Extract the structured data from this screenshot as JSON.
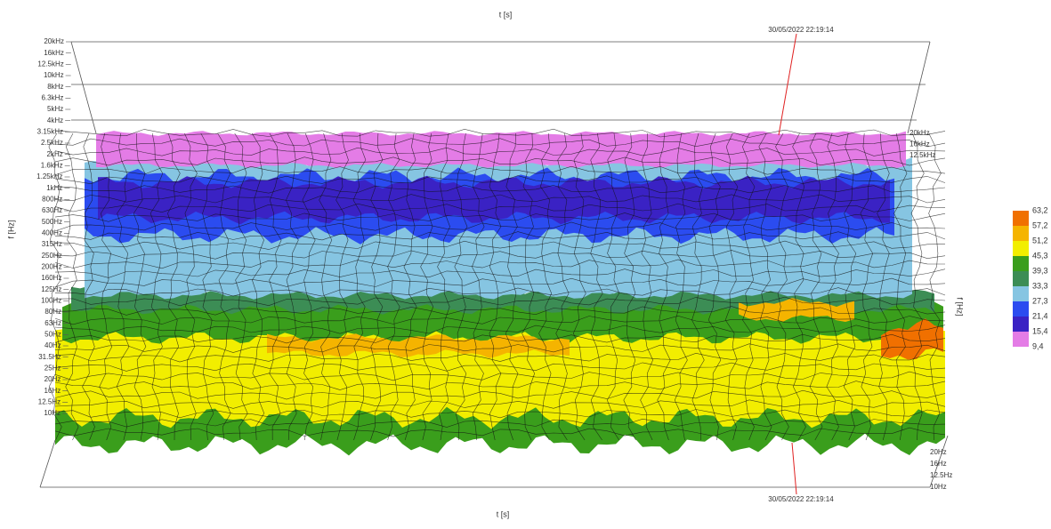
{
  "chart_data": {
    "type": "surface3d",
    "x_label": "t [s]",
    "y_label": "f [Hz]",
    "marker_label": "30/05/2022 22:19:14",
    "y_categories": [
      "20kHz",
      "16kHz",
      "12.5kHz",
      "10kHz",
      "8kHz",
      "6.3kHz",
      "5kHz",
      "4kHz",
      "3.15kHz",
      "2.5kHz",
      "2kHz",
      "1.6kHz",
      "1.25kHz",
      "1kHz",
      "800Hz",
      "630Hz",
      "500Hz",
      "400Hz",
      "315Hz",
      "250Hz",
      "200Hz",
      "160Hz",
      "125Hz",
      "100Hz",
      "80Hz",
      "63Hz",
      "50Hz",
      "40Hz",
      "31.5Hz",
      "25Hz",
      "20Hz",
      "16Hz",
      "12.5Hz",
      "10Hz"
    ],
    "right_upper_labels": [
      "20kHz",
      "16kHz",
      "12.5kHz"
    ],
    "right_lower_labels": [
      "20Hz",
      "16Hz",
      "12.5Hz",
      "10Hz"
    ],
    "colorbar": {
      "levels": [
        {
          "value": 63.2,
          "label": "63,2"
        },
        {
          "value": 57.2,
          "label": "57,2"
        },
        {
          "value": 51.2,
          "label": "51,2"
        },
        {
          "value": 45.3,
          "label": "45,3"
        },
        {
          "value": 39.3,
          "label": "39,3"
        },
        {
          "value": 33.3,
          "label": "33,3"
        },
        {
          "value": 27.3,
          "label": "27,3"
        },
        {
          "value": 21.4,
          "label": "21,4"
        },
        {
          "value": 15.4,
          "label": "15,4"
        },
        {
          "value": 9.4,
          "label": "9,4"
        }
      ],
      "colors": [
        "#f07000",
        "#f5b400",
        "#f2ee00",
        "#3a9e1c",
        "#3c8d55",
        "#86c5e2",
        "#2b4cf0",
        "#3a22c4",
        "#e47ce6"
      ]
    }
  }
}
